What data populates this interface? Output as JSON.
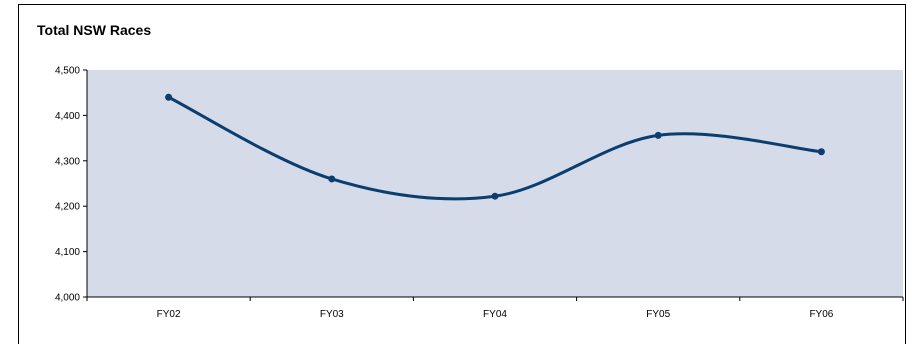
{
  "chart_data": {
    "type": "line",
    "title": "Total NSW Races",
    "xlabel": "",
    "ylabel": "",
    "categories": [
      "FY02",
      "FY03",
      "FY04",
      "FY05",
      "FY06"
    ],
    "series": [
      {
        "values": [
          4440,
          4260,
          4222,
          4356,
          4320
        ]
      }
    ],
    "ylim": [
      4000,
      4500
    ],
    "yticks": [
      4000,
      4100,
      4200,
      4300,
      4400,
      4500
    ],
    "ytick_labels": [
      "4,000",
      "4,100",
      "4,200",
      "4,300",
      "4,400",
      "4,500"
    ],
    "grid": false,
    "legend": "none",
    "smooth": true,
    "colors": {
      "plot_background": "#d5dbe8",
      "line": "#0b3e6f"
    }
  }
}
